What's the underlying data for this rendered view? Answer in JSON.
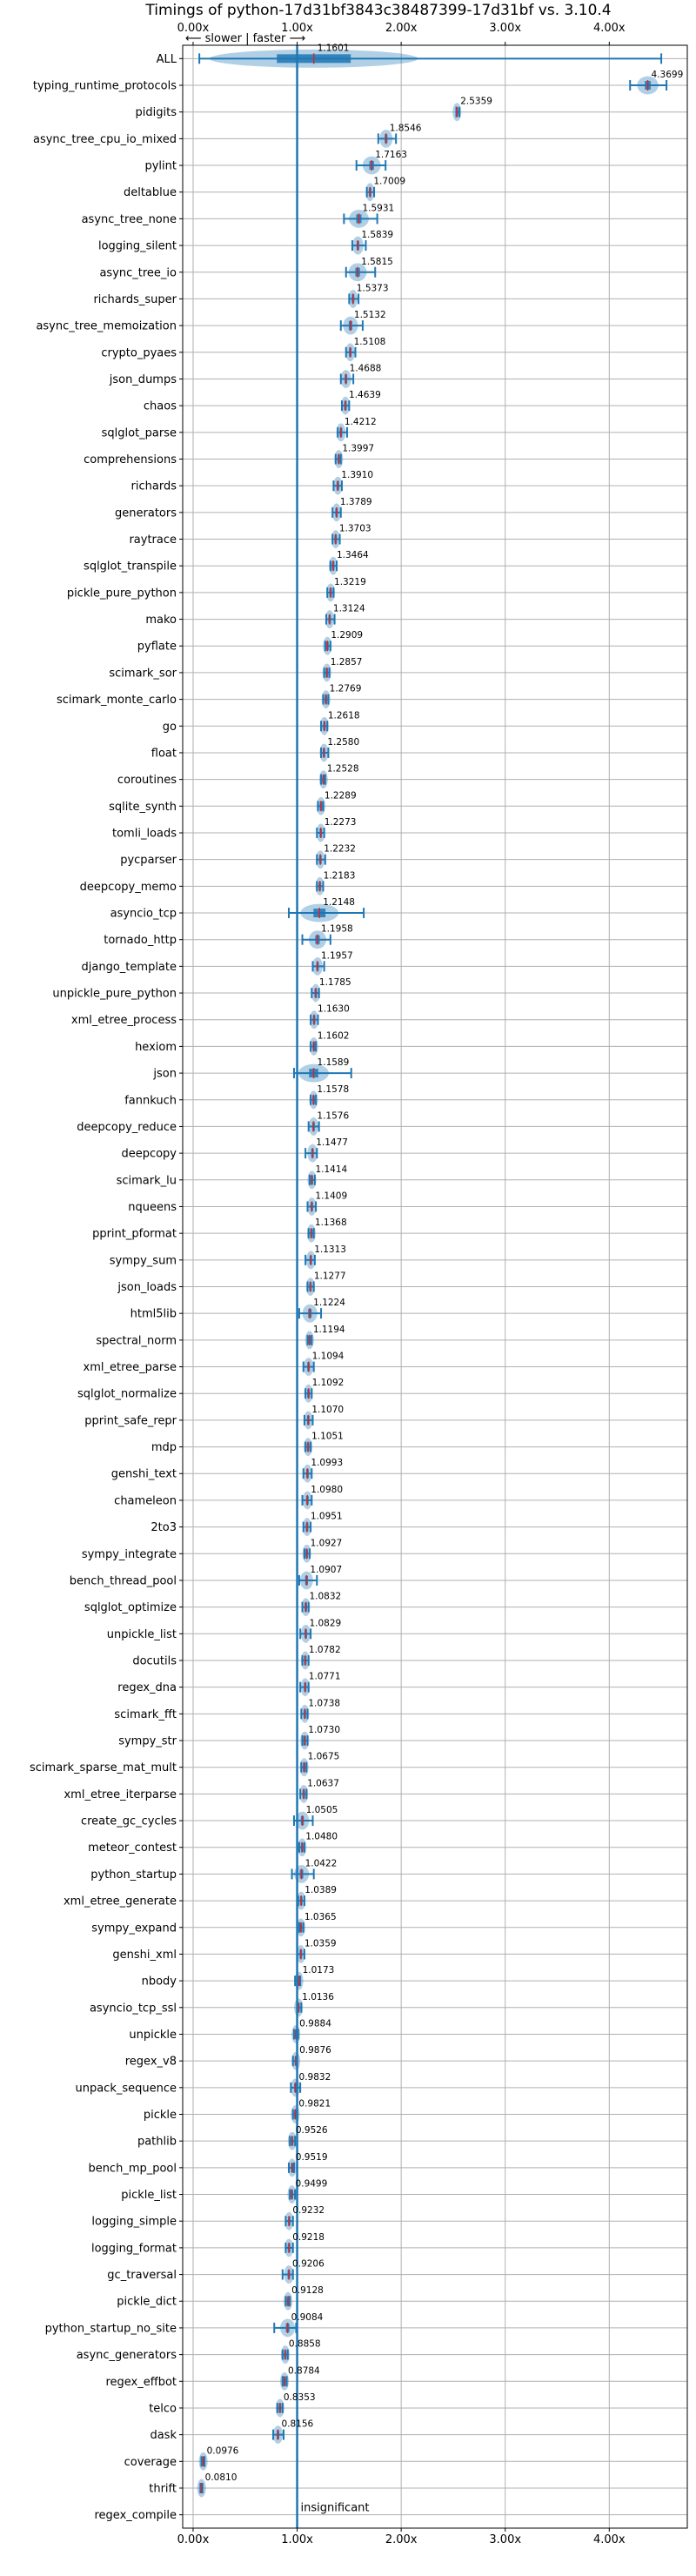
{
  "chart_data": {
    "type": "box",
    "title": "Timings of python-17d31bf3843c38487399-17d31bf vs. 3.10.4",
    "direction_note": "⟵ slower | faster ⟶",
    "insignificant_label": "insignificant",
    "xlim": [
      -0.1,
      4.75
    ],
    "xticks": [
      0,
      1,
      2,
      3,
      4
    ],
    "xtick_labels": [
      "0.00x",
      "1.00x",
      "2.00x",
      "3.00x",
      "4.00x"
    ],
    "reference_line": 1.0,
    "grid": true,
    "categories": [
      "ALL",
      "typing_runtime_protocols",
      "pidigits",
      "async_tree_cpu_io_mixed",
      "pylint",
      "deltablue",
      "async_tree_none",
      "logging_silent",
      "async_tree_io",
      "richards_super",
      "async_tree_memoization",
      "crypto_pyaes",
      "json_dumps",
      "chaos",
      "sqlglot_parse",
      "comprehensions",
      "richards",
      "generators",
      "raytrace",
      "sqlglot_transpile",
      "pickle_pure_python",
      "mako",
      "pyflate",
      "scimark_sor",
      "scimark_monte_carlo",
      "go",
      "float",
      "coroutines",
      "sqlite_synth",
      "tomli_loads",
      "pycparser",
      "deepcopy_memo",
      "asyncio_tcp",
      "tornado_http",
      "django_template",
      "unpickle_pure_python",
      "xml_etree_process",
      "hexiom",
      "json",
      "fannkuch",
      "deepcopy_reduce",
      "deepcopy",
      "scimark_lu",
      "nqueens",
      "pprint_pformat",
      "sympy_sum",
      "json_loads",
      "html5lib",
      "spectral_norm",
      "xml_etree_parse",
      "sqlglot_normalize",
      "pprint_safe_repr",
      "mdp",
      "genshi_text",
      "chameleon",
      "2to3",
      "sympy_integrate",
      "bench_thread_pool",
      "sqlglot_optimize",
      "unpickle_list",
      "docutils",
      "regex_dna",
      "scimark_fft",
      "sympy_str",
      "scimark_sparse_mat_mult",
      "xml_etree_iterparse",
      "create_gc_cycles",
      "meteor_contest",
      "python_startup",
      "xml_etree_generate",
      "sympy_expand",
      "genshi_xml",
      "nbody",
      "asyncio_tcp_ssl",
      "unpickle",
      "regex_v8",
      "unpack_sequence",
      "pickle",
      "pathlib",
      "bench_mp_pool",
      "pickle_list",
      "logging_simple",
      "logging_format",
      "gc_traversal",
      "pickle_dict",
      "python_startup_no_site",
      "async_generators",
      "regex_effbot",
      "telco",
      "dask",
      "coverage",
      "thrift",
      "regex_compile"
    ],
    "value_labels": [
      "1.1601",
      "4.3699",
      "2.5359",
      "1.8546",
      "1.7163",
      "1.7009",
      "1.5931",
      "1.5839",
      "1.5815",
      "1.5373",
      "1.5132",
      "1.5108",
      "1.4688",
      "1.4639",
      "1.4212",
      "1.3997",
      "1.3910",
      "1.3789",
      "1.3703",
      "1.3464",
      "1.3219",
      "1.3124",
      "1.2909",
      "1.2857",
      "1.2769",
      "1.2618",
      "1.2580",
      "1.2528",
      "1.2289",
      "1.2273",
      "1.2232",
      "1.2183",
      "1.2148",
      "1.1958",
      "1.1957",
      "1.1785",
      "1.1630",
      "1.1602",
      "1.1589",
      "1.1578",
      "1.1576",
      "1.1477",
      "1.1414",
      "1.1409",
      "1.1368",
      "1.1313",
      "1.1277",
      "1.1224",
      "1.1194",
      "1.1094",
      "1.1092",
      "1.1070",
      "1.1051",
      "1.0993",
      "1.0980",
      "1.0951",
      "1.0927",
      "1.0907",
      "1.0832",
      "1.0829",
      "1.0782",
      "1.0771",
      "1.0738",
      "1.0730",
      "1.0675",
      "1.0637",
      "1.0505",
      "1.0480",
      "1.0422",
      "1.0389",
      "1.0365",
      "1.0359",
      "1.0173",
      "1.0136",
      "0.9884",
      "0.9876",
      "0.9832",
      "0.9821",
      "0.9526",
      "0.9519",
      "0.9499",
      "0.9232",
      "0.9218",
      "0.9206",
      "0.9128",
      "0.9084",
      "0.8858",
      "0.8784",
      "0.8353",
      "0.8156",
      "0.0976",
      "0.0810",
      ""
    ],
    "values": [
      1.1601,
      4.3699,
      2.5359,
      1.8546,
      1.7163,
      1.7009,
      1.5931,
      1.5839,
      1.5815,
      1.5373,
      1.5132,
      1.5108,
      1.4688,
      1.4639,
      1.4212,
      1.3997,
      1.391,
      1.3789,
      1.3703,
      1.3464,
      1.3219,
      1.3124,
      1.2909,
      1.2857,
      1.2769,
      1.2618,
      1.258,
      1.2528,
      1.2289,
      1.2273,
      1.2232,
      1.2183,
      1.2148,
      1.1958,
      1.1957,
      1.1785,
      1.163,
      1.1602,
      1.1589,
      1.1578,
      1.1576,
      1.1477,
      1.1414,
      1.1409,
      1.1368,
      1.1313,
      1.1277,
      1.1224,
      1.1194,
      1.1094,
      1.1092,
      1.107,
      1.1051,
      1.0993,
      1.098,
      1.0951,
      1.0927,
      1.0907,
      1.0832,
      1.0829,
      1.0782,
      1.0771,
      1.0738,
      1.073,
      1.0675,
      1.0637,
      1.0505,
      1.048,
      1.0422,
      1.0389,
      1.0365,
      1.0359,
      1.0173,
      1.0136,
      0.9884,
      0.9876,
      0.9832,
      0.9821,
      0.9526,
      0.9519,
      0.9499,
      0.9232,
      0.9218,
      0.9206,
      0.9128,
      0.9084,
      0.8858,
      0.8784,
      0.8353,
      0.8156,
      0.0976,
      0.081,
      null
    ],
    "whisker_low": [
      0.06,
      4.2,
      2.53,
      1.78,
      1.57,
      1.67,
      1.45,
      1.53,
      1.47,
      1.5,
      1.42,
      1.47,
      1.42,
      1.43,
      1.39,
      1.37,
      1.35,
      1.34,
      1.34,
      1.32,
      1.29,
      1.28,
      1.27,
      1.26,
      1.25,
      1.23,
      1.23,
      1.23,
      1.2,
      1.19,
      1.19,
      1.19,
      0.92,
      1.05,
      1.15,
      1.14,
      1.13,
      1.13,
      0.97,
      1.13,
      1.11,
      1.08,
      1.12,
      1.1,
      1.11,
      1.08,
      1.1,
      1.02,
      1.1,
      1.06,
      1.08,
      1.07,
      1.08,
      1.06,
      1.05,
      1.06,
      1.07,
      1.02,
      1.05,
      1.03,
      1.05,
      1.03,
      1.04,
      1.05,
      1.04,
      1.03,
      0.97,
      1.02,
      0.95,
      1.01,
      1.02,
      1.0,
      0.98,
      1.0,
      0.97,
      0.96,
      0.94,
      0.96,
      0.93,
      0.92,
      0.93,
      0.89,
      0.89,
      0.86,
      0.89,
      0.78,
      0.86,
      0.86,
      0.81,
      0.77,
      0.08,
      0.07,
      null
    ],
    "whisker_high": [
      4.5,
      4.55,
      2.56,
      1.95,
      1.85,
      1.74,
      1.77,
      1.66,
      1.75,
      1.59,
      1.63,
      1.56,
      1.54,
      1.5,
      1.48,
      1.42,
      1.43,
      1.42,
      1.41,
      1.38,
      1.35,
      1.36,
      1.32,
      1.31,
      1.3,
      1.29,
      1.3,
      1.27,
      1.25,
      1.26,
      1.27,
      1.25,
      1.64,
      1.32,
      1.26,
      1.21,
      1.2,
      1.18,
      1.52,
      1.18,
      1.21,
      1.19,
      1.17,
      1.18,
      1.16,
      1.17,
      1.16,
      1.23,
      1.14,
      1.16,
      1.14,
      1.15,
      1.13,
      1.14,
      1.14,
      1.13,
      1.12,
      1.19,
      1.11,
      1.13,
      1.11,
      1.11,
      1.1,
      1.1,
      1.09,
      1.09,
      1.15,
      1.07,
      1.16,
      1.07,
      1.06,
      1.07,
      1.03,
      1.04,
      1.01,
      1.0,
      1.03,
      1.0,
      0.98,
      0.97,
      0.98,
      0.96,
      0.96,
      0.96,
      0.93,
      0.99,
      0.91,
      0.9,
      0.86,
      0.87,
      0.11,
      0.09,
      null
    ]
  }
}
